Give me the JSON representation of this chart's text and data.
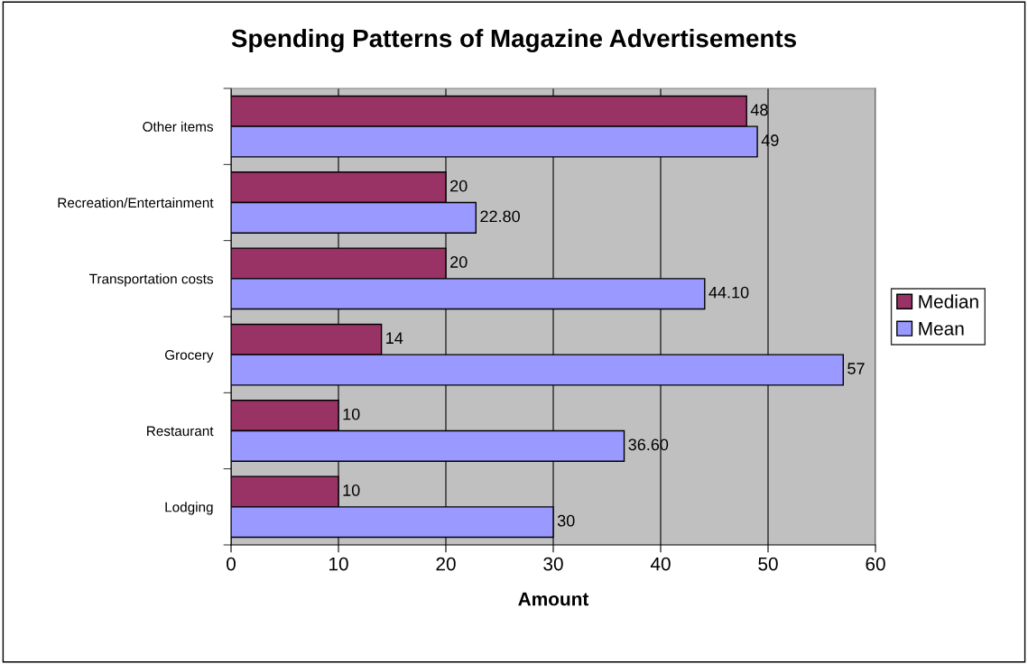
{
  "chart_data": {
    "type": "bar",
    "orientation": "horizontal",
    "title": "Spending Patterns of Magazine Advertisements",
    "xlabel": "Amount",
    "categories": [
      "Other items",
      "Recreation/Entertainment",
      "Transportation costs",
      "Grocery",
      "Restaurant",
      "Lodging"
    ],
    "series": [
      {
        "name": "Median",
        "color": "#993366",
        "values": [
          48,
          20,
          20,
          14,
          10,
          10
        ],
        "value_labels": [
          "48",
          "20",
          "20",
          "14",
          "10",
          "10"
        ]
      },
      {
        "name": "Mean",
        "color": "#9999ff",
        "values": [
          49,
          22.8,
          44.1,
          57,
          36.6,
          30
        ],
        "value_labels": [
          "49",
          "22.80",
          "44.10",
          "57",
          "36.60",
          "30"
        ]
      }
    ],
    "xlim": [
      0,
      60
    ],
    "xticks": [
      0,
      10,
      20,
      30,
      40,
      50,
      60
    ],
    "grid": "x",
    "legend": "right"
  }
}
